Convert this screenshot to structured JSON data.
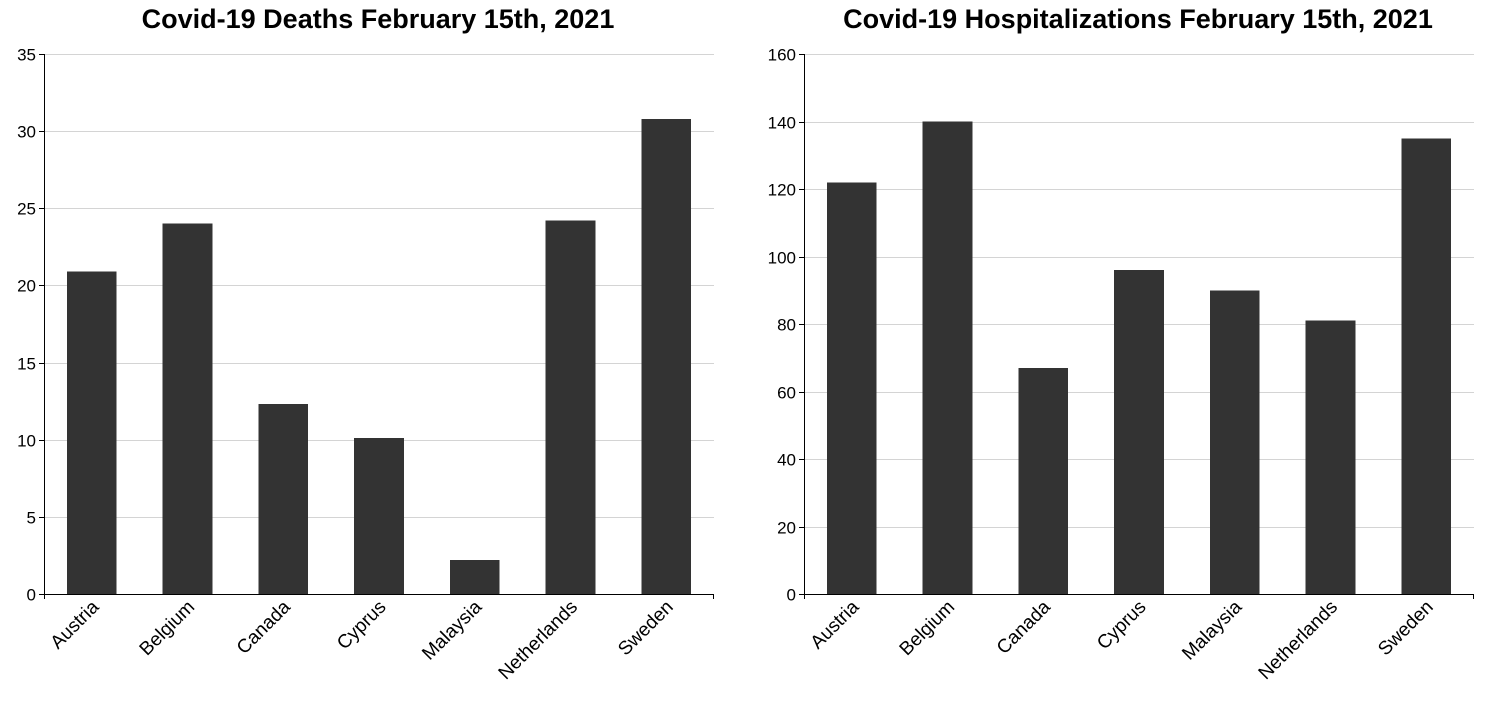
{
  "chart_data": [
    {
      "type": "bar",
      "title": "Covid-19 Deaths February 15th, 2021",
      "xlabel": "",
      "ylabel": "",
      "categories": [
        "Austria",
        "Belgium",
        "Canada",
        "Cyprus",
        "Malaysia",
        "Netherlands",
        "Sweden"
      ],
      "values": [
        20.9,
        24.0,
        12.3,
        10.1,
        2.2,
        24.2,
        30.8
      ],
      "ylim": [
        0,
        35
      ],
      "yticks": [
        0,
        5,
        10,
        15,
        20,
        25,
        30,
        35
      ],
      "grid": true,
      "bar_color": "#333333"
    },
    {
      "type": "bar",
      "title": "Covid-19 Hospitalizations February 15th, 2021",
      "xlabel": "",
      "ylabel": "",
      "categories": [
        "Austria",
        "Belgium",
        "Canada",
        "Cyprus",
        "Malaysia",
        "Netherlands",
        "Sweden"
      ],
      "values": [
        122,
        140,
        67,
        96,
        90,
        81,
        135
      ],
      "ylim": [
        0,
        160
      ],
      "yticks": [
        0,
        20,
        40,
        60,
        80,
        100,
        120,
        140,
        160
      ],
      "grid": true,
      "bar_color": "#333333"
    }
  ]
}
